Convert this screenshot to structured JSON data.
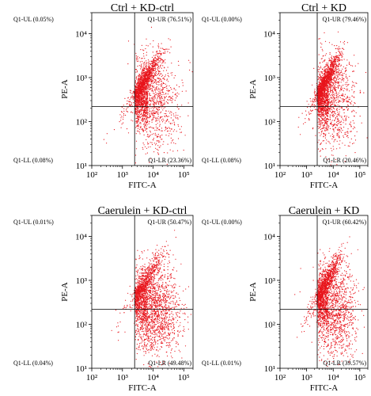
{
  "chart_data": [
    {
      "type": "scatter",
      "title": "Ctrl + KD-ctrl",
      "xlabel": "FITC-A",
      "ylabel": "PE-A",
      "xscale": "log",
      "yscale": "log",
      "xlim": [
        100,
        200000
      ],
      "ylim": [
        10,
        30000
      ],
      "xticks": [
        "10²",
        "10³",
        "10⁴",
        "10⁵"
      ],
      "yticks": [
        "10¹",
        "10²",
        "10³",
        "10⁴"
      ],
      "gate": {
        "x": 2500,
        "y": 220
      },
      "quadrants": {
        "ul": "Q1-UL (0.05%)",
        "ur": "Q1-UR (76.51%)",
        "ll": "Q1-LL (0.08%)",
        "lr": "Q1-LR (23.36%)"
      },
      "point_color": "#e8141b"
    },
    {
      "type": "scatter",
      "title": "Ctrl + KD",
      "xlabel": "FITC-A",
      "ylabel": "PE-A",
      "xscale": "log",
      "yscale": "log",
      "xlim": [
        100,
        200000
      ],
      "ylim": [
        10,
        30000
      ],
      "xticks": [
        "10²",
        "10³",
        "10⁴",
        "10⁵"
      ],
      "yticks": [
        "10¹",
        "10²",
        "10³",
        "10⁴"
      ],
      "gate": {
        "x": 2500,
        "y": 220
      },
      "quadrants": {
        "ul": "Q1-UL (0.00%)",
        "ur": "Q1-UR (79.46%)",
        "ll": "Q1-LL (0.08%)",
        "lr": "Q1-LR (20.46%)"
      },
      "point_color": "#e8141b"
    },
    {
      "type": "scatter",
      "title": "Caerulein + KD-ctrl",
      "xlabel": "FITC-A",
      "ylabel": "PE-A",
      "xscale": "log",
      "yscale": "log",
      "xlim": [
        100,
        200000
      ],
      "ylim": [
        10,
        30000
      ],
      "xticks": [
        "10²",
        "10³",
        "10⁴",
        "10⁵"
      ],
      "yticks": [
        "10¹",
        "10²",
        "10³",
        "10⁴"
      ],
      "gate": {
        "x": 2500,
        "y": 220
      },
      "quadrants": {
        "ul": "Q1-UL (0.01%)",
        "ur": "Q1-UR (50.47%)",
        "ll": "Q1-LL (0.04%)",
        "lr": "Q1-LR (49.48%)"
      },
      "point_color": "#e8141b"
    },
    {
      "type": "scatter",
      "title": "Caerulein + KD",
      "xlabel": "FITC-A",
      "ylabel": "PE-A",
      "xscale": "log",
      "yscale": "log",
      "xlim": [
        100,
        200000
      ],
      "ylim": [
        10,
        30000
      ],
      "xticks": [
        "10²",
        "10³",
        "10⁴",
        "10⁵"
      ],
      "yticks": [
        "10¹",
        "10²",
        "10³",
        "10⁴"
      ],
      "gate": {
        "x": 2500,
        "y": 220
      },
      "quadrants": {
        "ul": "Q1-UL (0.00%)",
        "ur": "Q1-UR (60.42%)",
        "ll": "Q1-LL (0.01%)",
        "lr": "Q1-LR (39.57%)"
      },
      "point_color": "#e8141b"
    }
  ]
}
